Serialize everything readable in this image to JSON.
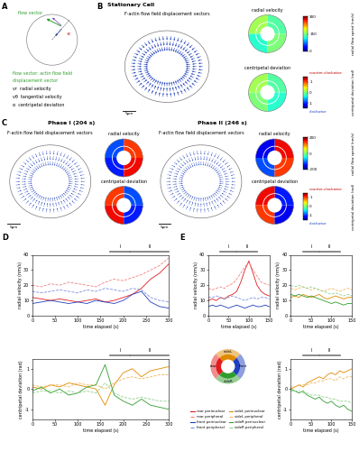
{
  "panel_labels": [
    "A",
    "B",
    "C",
    "D",
    "E"
  ],
  "panel_A": {
    "vector_label": "flow vector",
    "angle_label": "-α",
    "definition_lines": [
      "flow vector: actin flow field",
      "displacement vector",
      "vr  radial velocity",
      "vθ  tangential velocity",
      "α  centripetal deviation"
    ]
  },
  "panel_B": {
    "title": "Stationary Cell",
    "flow_title": "F-actin flow field displacement vectors",
    "scale_bar": "5µm",
    "radial_title": "radial velocity",
    "centripetal_title": "centripetal deviation",
    "radial_colorbar": {
      "label": "radial flow speed (nm/s)",
      "lim": [
        0,
        300
      ],
      "ticks": [
        0,
        150,
        300
      ]
    },
    "centripetal_colorbar": {
      "label": "centripetal deviation (rad)",
      "lim": [
        -1.5,
        1.5
      ],
      "ticks": [
        -1,
        0,
        1
      ],
      "top": "counter-clockwise",
      "bottom": "clockwise"
    }
  },
  "panel_C": {
    "phases": [
      {
        "title": "Phase I (204 s)",
        "flow_title": "F-actin flow field displacement vectors",
        "scale_bar": "5µm",
        "radial_title": "radial velocity",
        "centripetal_title": "centripetal deviation"
      },
      {
        "title": "Phase II (246 s)",
        "flow_title": "F-actin flow field displacement vectors",
        "scale_bar": "5µm",
        "radial_title": "radial velocity",
        "centripetal_title": "centripetal deviation"
      }
    ],
    "radial_colorbar": {
      "label": "radial flow speed (nm/s)",
      "lim": [
        -200,
        200
      ],
      "ticks": [
        -200,
        0,
        200
      ]
    },
    "centripetal_colorbar": {
      "label": "centripetal deviation (rad)",
      "lim": [
        -1.5,
        1.5
      ],
      "ticks": [
        -1,
        0,
        1
      ],
      "top": "counter-clockwise",
      "bottom": "clockwise"
    }
  },
  "regions": [
    {
      "name": "sideL",
      "color": "#e08a00"
    },
    {
      "name": "rear",
      "color": "#e41a1c"
    },
    {
      "name": "sideR",
      "color": "#2e9e2e"
    },
    {
      "name": "front",
      "color": "#1f3fbf"
    }
  ],
  "chart_data": [
    {
      "type": "line",
      "x": [
        0,
        20,
        40,
        60,
        80,
        100,
        120,
        140,
        160,
        180,
        200,
        220,
        240,
        260,
        280,
        300
      ],
      "xlim": [
        0,
        300
      ],
      "xticks": [
        0,
        50,
        100,
        150,
        200,
        250,
        300
      ],
      "ylim": [
        0,
        40
      ],
      "yticks": [
        0,
        10,
        20,
        30,
        40
      ],
      "x_label": "time elapsed (s)",
      "y_label": "radial velocity (nm/s)",
      "phases": [
        {
          "label": "I",
          "start": 170,
          "end": 215
        },
        {
          "label": "II",
          "start": 215,
          "end": 300
        }
      ],
      "series": [
        {
          "name": "rear perinuclear",
          "color": "#e41a1c",
          "line_style": "solid",
          "values": [
            12,
            11,
            10,
            11,
            10,
            9,
            10,
            11,
            9,
            10,
            12,
            14,
            18,
            24,
            28,
            34
          ]
        },
        {
          "name": "rear peripheral",
          "color": "#f08080",
          "line_style": "dashed",
          "values": [
            20,
            19,
            21,
            20,
            22,
            21,
            20,
            19,
            22,
            24,
            23,
            25,
            27,
            30,
            33,
            38
          ]
        },
        {
          "name": "front perinuclear",
          "color": "#1f3fbf",
          "line_style": "solid",
          "values": [
            8,
            9,
            10,
            9,
            8,
            9,
            8,
            10,
            9,
            8,
            10,
            14,
            16,
            9,
            6,
            5
          ]
        },
        {
          "name": "front peripheral",
          "color": "#7b8fe0",
          "line_style": "dashed",
          "values": [
            16,
            15,
            16,
            17,
            16,
            15,
            17,
            16,
            18,
            17,
            16,
            18,
            17,
            12,
            10,
            9
          ]
        }
      ]
    },
    {
      "type": "line",
      "x": [
        0,
        20,
        40,
        60,
        80,
        100,
        120,
        140,
        160,
        180,
        200,
        220,
        240,
        260,
        280,
        300
      ],
      "xlim": [
        0,
        300
      ],
      "xticks": [
        0,
        50,
        100,
        150,
        200,
        250,
        300
      ],
      "ylim": [
        -1.5,
        1.5
      ],
      "yticks": [
        -1,
        0,
        1
      ],
      "x_label": "time elapsed (s)",
      "y_label": "centripetal deviation (rad)",
      "phases": [
        {
          "label": "I",
          "start": 170,
          "end": 215
        },
        {
          "label": "II",
          "start": 215,
          "end": 300
        }
      ],
      "series": [
        {
          "name": "sideL perinuclear",
          "color": "#e08a00",
          "line_style": "solid",
          "values": [
            0.1,
            0.0,
            0.2,
            0.1,
            0.3,
            0.2,
            0.1,
            0.0,
            -0.8,
            0.2,
            0.8,
            1.0,
            0.6,
            0.9,
            1.0,
            1.1
          ]
        },
        {
          "name": "sideL peripheral",
          "color": "#f0b860",
          "line_style": "dashed",
          "values": [
            0.2,
            0.1,
            0.2,
            0.2,
            0.1,
            0.3,
            0.2,
            0.2,
            0.0,
            0.3,
            0.5,
            0.6,
            0.5,
            0.6,
            0.7,
            0.7
          ]
        },
        {
          "name": "sideR perinuclear",
          "color": "#2e9e2e",
          "line_style": "solid",
          "values": [
            -0.1,
            0.1,
            -0.2,
            0.0,
            -0.3,
            -0.2,
            0.1,
            0.2,
            1.2,
            -0.3,
            -0.6,
            -0.8,
            -0.5,
            -0.8,
            -0.9,
            -1.0
          ]
        },
        {
          "name": "sideR peripheral",
          "color": "#8fd18f",
          "line_style": "dashed",
          "values": [
            -0.2,
            -0.1,
            -0.1,
            -0.2,
            -0.1,
            -0.2,
            -0.1,
            -0.2,
            0.3,
            -0.2,
            -0.4,
            -0.5,
            -0.4,
            -0.5,
            -0.6,
            -0.6
          ]
        }
      ]
    },
    {
      "type": "line",
      "legend": "center",
      "x": [
        0,
        10,
        20,
        30,
        40,
        50,
        60,
        70,
        80,
        90,
        100,
        110,
        120,
        130,
        140,
        150
      ],
      "xlim": [
        0,
        150
      ],
      "xticks": [
        0,
        50,
        100,
        150
      ],
      "ylim": [
        0,
        40
      ],
      "yticks": [
        0,
        10,
        20,
        30,
        40
      ],
      "x_label": "time elapsed (s)",
      "y_label": "radial velocity (nm/s)",
      "phases": [
        {
          "label": "I",
          "start": 30,
          "end": 70
        },
        {
          "label": "II",
          "start": 70,
          "end": 120
        }
      ],
      "series": [
        {
          "name": "rear perinuclear",
          "color": "#e41a1c",
          "line_style": "solid",
          "values": [
            10,
            11,
            10,
            12,
            11,
            13,
            14,
            16,
            22,
            30,
            36,
            28,
            20,
            16,
            14,
            13
          ]
        },
        {
          "name": "rear peripheral",
          "color": "#f08080",
          "line_style": "dashed",
          "values": [
            18,
            17,
            18,
            19,
            18,
            20,
            21,
            24,
            28,
            32,
            35,
            30,
            26,
            22,
            21,
            20
          ]
        },
        {
          "name": "front perinuclear",
          "color": "#1f3fbf",
          "line_style": "solid",
          "values": [
            6,
            7,
            6,
            7,
            6,
            5,
            6,
            7,
            6,
            5,
            6,
            7,
            6,
            6,
            7,
            6
          ]
        },
        {
          "name": "front peripheral",
          "color": "#7b8fe0",
          "line_style": "dashed",
          "values": [
            12,
            12,
            13,
            12,
            11,
            12,
            13,
            12,
            11,
            10,
            11,
            12,
            11,
            12,
            12,
            11
          ]
        }
      ]
    },
    {
      "type": "line",
      "x": [
        0,
        10,
        20,
        30,
        40,
        50,
        60,
        70,
        80,
        90,
        100,
        110,
        120,
        130,
        140,
        150
      ],
      "xlim": [
        0,
        150
      ],
      "xticks": [
        0,
        50,
        100,
        150
      ],
      "ylim": [
        0,
        40
      ],
      "yticks": [
        0,
        10,
        20,
        30,
        40
      ],
      "x_label": "time elapsed (s)",
      "y_label": "radial velocity (nm/s)",
      "phases": [
        {
          "label": "I",
          "start": 30,
          "end": 70
        },
        {
          "label": "II",
          "start": 70,
          "end": 120
        }
      ],
      "series": [
        {
          "name": "sideL perinuclear",
          "color": "#e08a00",
          "line_style": "solid",
          "values": [
            12,
            13,
            12,
            14,
            13,
            12,
            13,
            14,
            12,
            11,
            12,
            13,
            12,
            11,
            12,
            12
          ]
        },
        {
          "name": "sideL peripheral",
          "color": "#f0b860",
          "line_style": "dashed",
          "values": [
            18,
            17,
            18,
            19,
            18,
            17,
            18,
            17,
            16,
            17,
            18,
            17,
            16,
            17,
            18,
            17
          ]
        },
        {
          "name": "sideR perinuclear",
          "color": "#2e9e2e",
          "line_style": "solid",
          "values": [
            14,
            13,
            14,
            13,
            12,
            13,
            12,
            11,
            10,
            9,
            8,
            9,
            8,
            7,
            8,
            8
          ]
        },
        {
          "name": "sideR peripheral",
          "color": "#8fd18f",
          "line_style": "dashed",
          "values": [
            20,
            19,
            20,
            19,
            18,
            19,
            18,
            17,
            16,
            15,
            14,
            15,
            14,
            13,
            14,
            13
          ]
        }
      ]
    },
    {
      "type": "line",
      "x": [
        0,
        10,
        20,
        30,
        40,
        50,
        60,
        70,
        80,
        90,
        100,
        110,
        120,
        130,
        140,
        150
      ],
      "xlim": [
        0,
        150
      ],
      "xticks": [
        0,
        50,
        100,
        150
      ],
      "ylim": [
        -1.5,
        1.5
      ],
      "yticks": [
        -1,
        0,
        1
      ],
      "x_label": "time elapsed (s)",
      "y_label": "centripetal deviation (rad)",
      "phases": [
        {
          "label": "I",
          "start": 30,
          "end": 70
        },
        {
          "label": "II",
          "start": 70,
          "end": 120
        }
      ],
      "series": [
        {
          "name": "sideL perinuclear",
          "color": "#e08a00",
          "line_style": "solid",
          "values": [
            0.0,
            0.1,
            0.2,
            0.1,
            0.3,
            0.4,
            0.5,
            0.6,
            0.5,
            0.7,
            0.8,
            0.7,
            0.9,
            0.8,
            0.9,
            1.0
          ]
        },
        {
          "name": "sideL peripheral",
          "color": "#f0b860",
          "line_style": "dashed",
          "values": [
            0.1,
            0.1,
            0.2,
            0.2,
            0.2,
            0.3,
            0.3,
            0.4,
            0.4,
            0.5,
            0.5,
            0.4,
            0.6,
            0.5,
            0.6,
            0.6
          ]
        },
        {
          "name": "sideR perinuclear",
          "color": "#2e9e2e",
          "line_style": "solid",
          "values": [
            0.0,
            -0.1,
            -0.2,
            -0.1,
            -0.3,
            -0.4,
            -0.5,
            -0.4,
            -0.6,
            -0.7,
            -0.6,
            -0.8,
            -0.9,
            -0.8,
            -1.0,
            -1.1
          ]
        },
        {
          "name": "sideR peripheral",
          "color": "#8fd18f",
          "line_style": "dashed",
          "values": [
            -0.1,
            -0.1,
            -0.1,
            -0.2,
            -0.2,
            -0.3,
            -0.3,
            -0.3,
            -0.4,
            -0.4,
            -0.5,
            -0.5,
            -0.6,
            -0.6,
            -0.6,
            -0.7
          ]
        }
      ]
    }
  ]
}
